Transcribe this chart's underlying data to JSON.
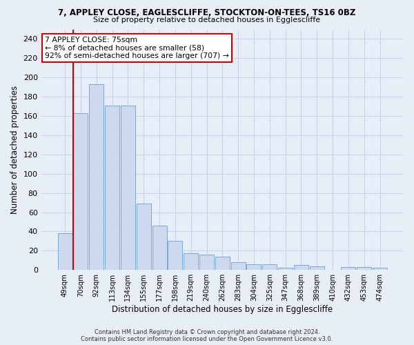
{
  "title1": "7, APPLEY CLOSE, EAGLESCLIFFE, STOCKTON-ON-TEES, TS16 0BZ",
  "title2": "Size of property relative to detached houses in Egglescliffe",
  "xlabel": "Distribution of detached houses by size in Egglescliffe",
  "ylabel": "Number of detached properties",
  "categories": [
    "49sqm",
    "70sqm",
    "92sqm",
    "113sqm",
    "134sqm",
    "155sqm",
    "177sqm",
    "198sqm",
    "219sqm",
    "240sqm",
    "262sqm",
    "283sqm",
    "304sqm",
    "325sqm",
    "347sqm",
    "368sqm",
    "389sqm",
    "410sqm",
    "432sqm",
    "453sqm",
    "474sqm"
  ],
  "values": [
    38,
    163,
    193,
    171,
    171,
    69,
    46,
    30,
    17,
    16,
    14,
    8,
    6,
    6,
    2,
    5,
    4,
    0,
    3,
    3,
    2
  ],
  "bar_color": "#ccd9ee",
  "bar_edge_color": "#7aa8d8",
  "highlight_bar_index": 1,
  "highlight_bar_edge_color": "#cc0000",
  "annotation_line1": "7 APPLEY CLOSE: 75sqm",
  "annotation_line2": "← 8% of detached houses are smaller (58)",
  "annotation_line3": "92% of semi-detached houses are larger (707) →",
  "annotation_box_color": "white",
  "annotation_box_edge_color": "#cc0000",
  "ylim": [
    0,
    250
  ],
  "yticks": [
    0,
    20,
    40,
    60,
    80,
    100,
    120,
    140,
    160,
    180,
    200,
    220,
    240
  ],
  "grid_color": "#c8d4e8",
  "background_color": "#e8eef8",
  "plot_bg_color": "#e8eef8",
  "footer": "Contains HM Land Registry data © Crown copyright and database right 2024.\nContains public sector information licensed under the Open Government Licence v3.0."
}
